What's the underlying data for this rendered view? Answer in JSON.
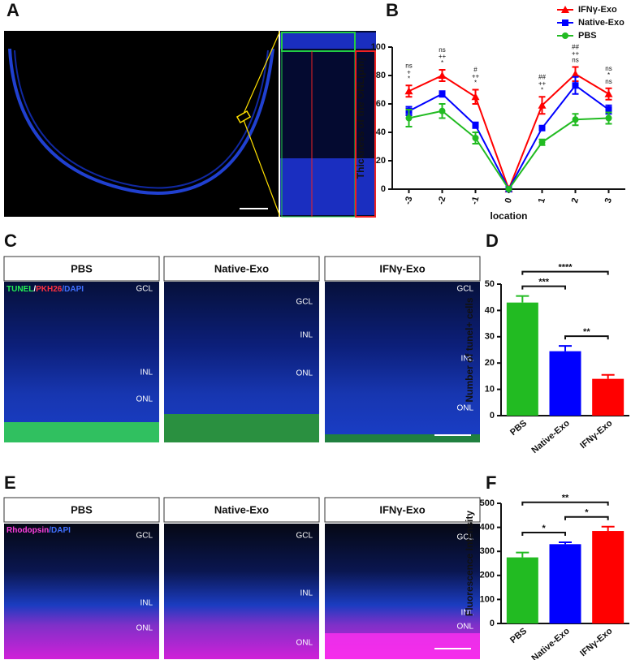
{
  "panel_labels": [
    "A",
    "B",
    "C",
    "D",
    "E",
    "F"
  ],
  "panel_c": {
    "columns": [
      "PBS",
      "Native-Exo",
      "IFNγ-Exo"
    ],
    "stain": [
      "TUNEL",
      "/",
      "PKH26",
      "/DAPI"
    ],
    "layers": [
      [
        "GCL",
        "INL",
        "ONL"
      ],
      [
        "GCL",
        "INL",
        "ONL"
      ],
      [
        "GCL",
        "INL",
        "ONL"
      ]
    ]
  },
  "panel_e": {
    "columns": [
      "PBS",
      "Native-Exo",
      "IFNγ-Exo"
    ],
    "stain": [
      "Rhodopsin",
      "/DAPI"
    ],
    "layers": [
      [
        "GCL",
        "INL",
        "ONL"
      ],
      [
        "GCL",
        "INL",
        "ONL"
      ],
      [
        "GCL",
        "INL",
        "ONL"
      ]
    ]
  },
  "chart_data": [
    {
      "type": "line",
      "x_label": "location",
      "y_label": "Thickness of the ONL(μm)",
      "categories": [
        "-3",
        "-2",
        "-1",
        "0",
        "1",
        "2",
        "3"
      ],
      "ylim": [
        0,
        100
      ],
      "yticks": [
        0,
        20,
        40,
        60,
        80,
        100
      ],
      "legend": "top-right",
      "series": [
        {
          "name": "IFNγ-Exo",
          "color": "#ff0000",
          "marker": "triangle",
          "values": [
            69,
            80,
            65,
            0,
            59,
            81,
            67
          ],
          "errors": [
            4,
            4,
            5,
            0,
            6,
            5,
            4
          ]
        },
        {
          "name": "Native-Exo",
          "color": "#0000ff",
          "marker": "square",
          "values": [
            55,
            67,
            45,
            0,
            43,
            73,
            56
          ],
          "errors": [
            3,
            2,
            2,
            0,
            1,
            6,
            3
          ]
        },
        {
          "name": "PBS",
          "color": "#22bb22",
          "marker": "circle",
          "values": [
            50,
            55,
            36,
            0,
            33,
            49,
            50
          ],
          "errors": [
            6,
            5,
            4,
            0,
            2,
            4,
            4
          ]
        }
      ],
      "annotations": [
        [
          "ns",
          "+",
          "*"
        ],
        [
          "ns",
          "++",
          "*"
        ],
        [
          "#",
          "++",
          "*"
        ],
        null,
        [
          "##",
          "++",
          "*"
        ],
        [
          "##",
          "++",
          "ns"
        ],
        [
          "ns",
          "*",
          "ns"
        ]
      ]
    },
    {
      "type": "bar",
      "y_label": "Number of tunel+ cells",
      "categories": [
        "PBS",
        "Native-Exo",
        "IFNγ-Exo"
      ],
      "values": [
        43,
        24.5,
        14
      ],
      "errors": [
        2.5,
        2,
        1.5
      ],
      "colors": [
        "#22bb22",
        "#0000ff",
        "#ff0000"
      ],
      "ylim": [
        0,
        50
      ],
      "yticks": [
        0,
        10,
        20,
        30,
        40,
        50
      ],
      "comparisons": [
        {
          "from": "PBS",
          "to": "Native-Exo",
          "label": "***"
        },
        {
          "from": "PBS",
          "to": "IFNγ-Exo",
          "label": "****"
        },
        {
          "from": "Native-Exo",
          "to": "IFNγ-Exo",
          "label": "**"
        }
      ]
    },
    {
      "type": "bar",
      "y_label": "Fluorescence Intensity",
      "categories": [
        "PBS",
        "Native-Exo",
        "IFNγ-Exo"
      ],
      "values": [
        275,
        330,
        385
      ],
      "errors": [
        20,
        8,
        18
      ],
      "colors": [
        "#22bb22",
        "#0000ff",
        "#ff0000"
      ],
      "ylim": [
        0,
        500
      ],
      "yticks": [
        0,
        100,
        200,
        300,
        400,
        500
      ],
      "comparisons": [
        {
          "from": "PBS",
          "to": "Native-Exo",
          "label": "*"
        },
        {
          "from": "PBS",
          "to": "IFNγ-Exo",
          "label": "**"
        },
        {
          "from": "Native-Exo",
          "to": "IFNγ-Exo",
          "label": "*"
        }
      ]
    }
  ]
}
